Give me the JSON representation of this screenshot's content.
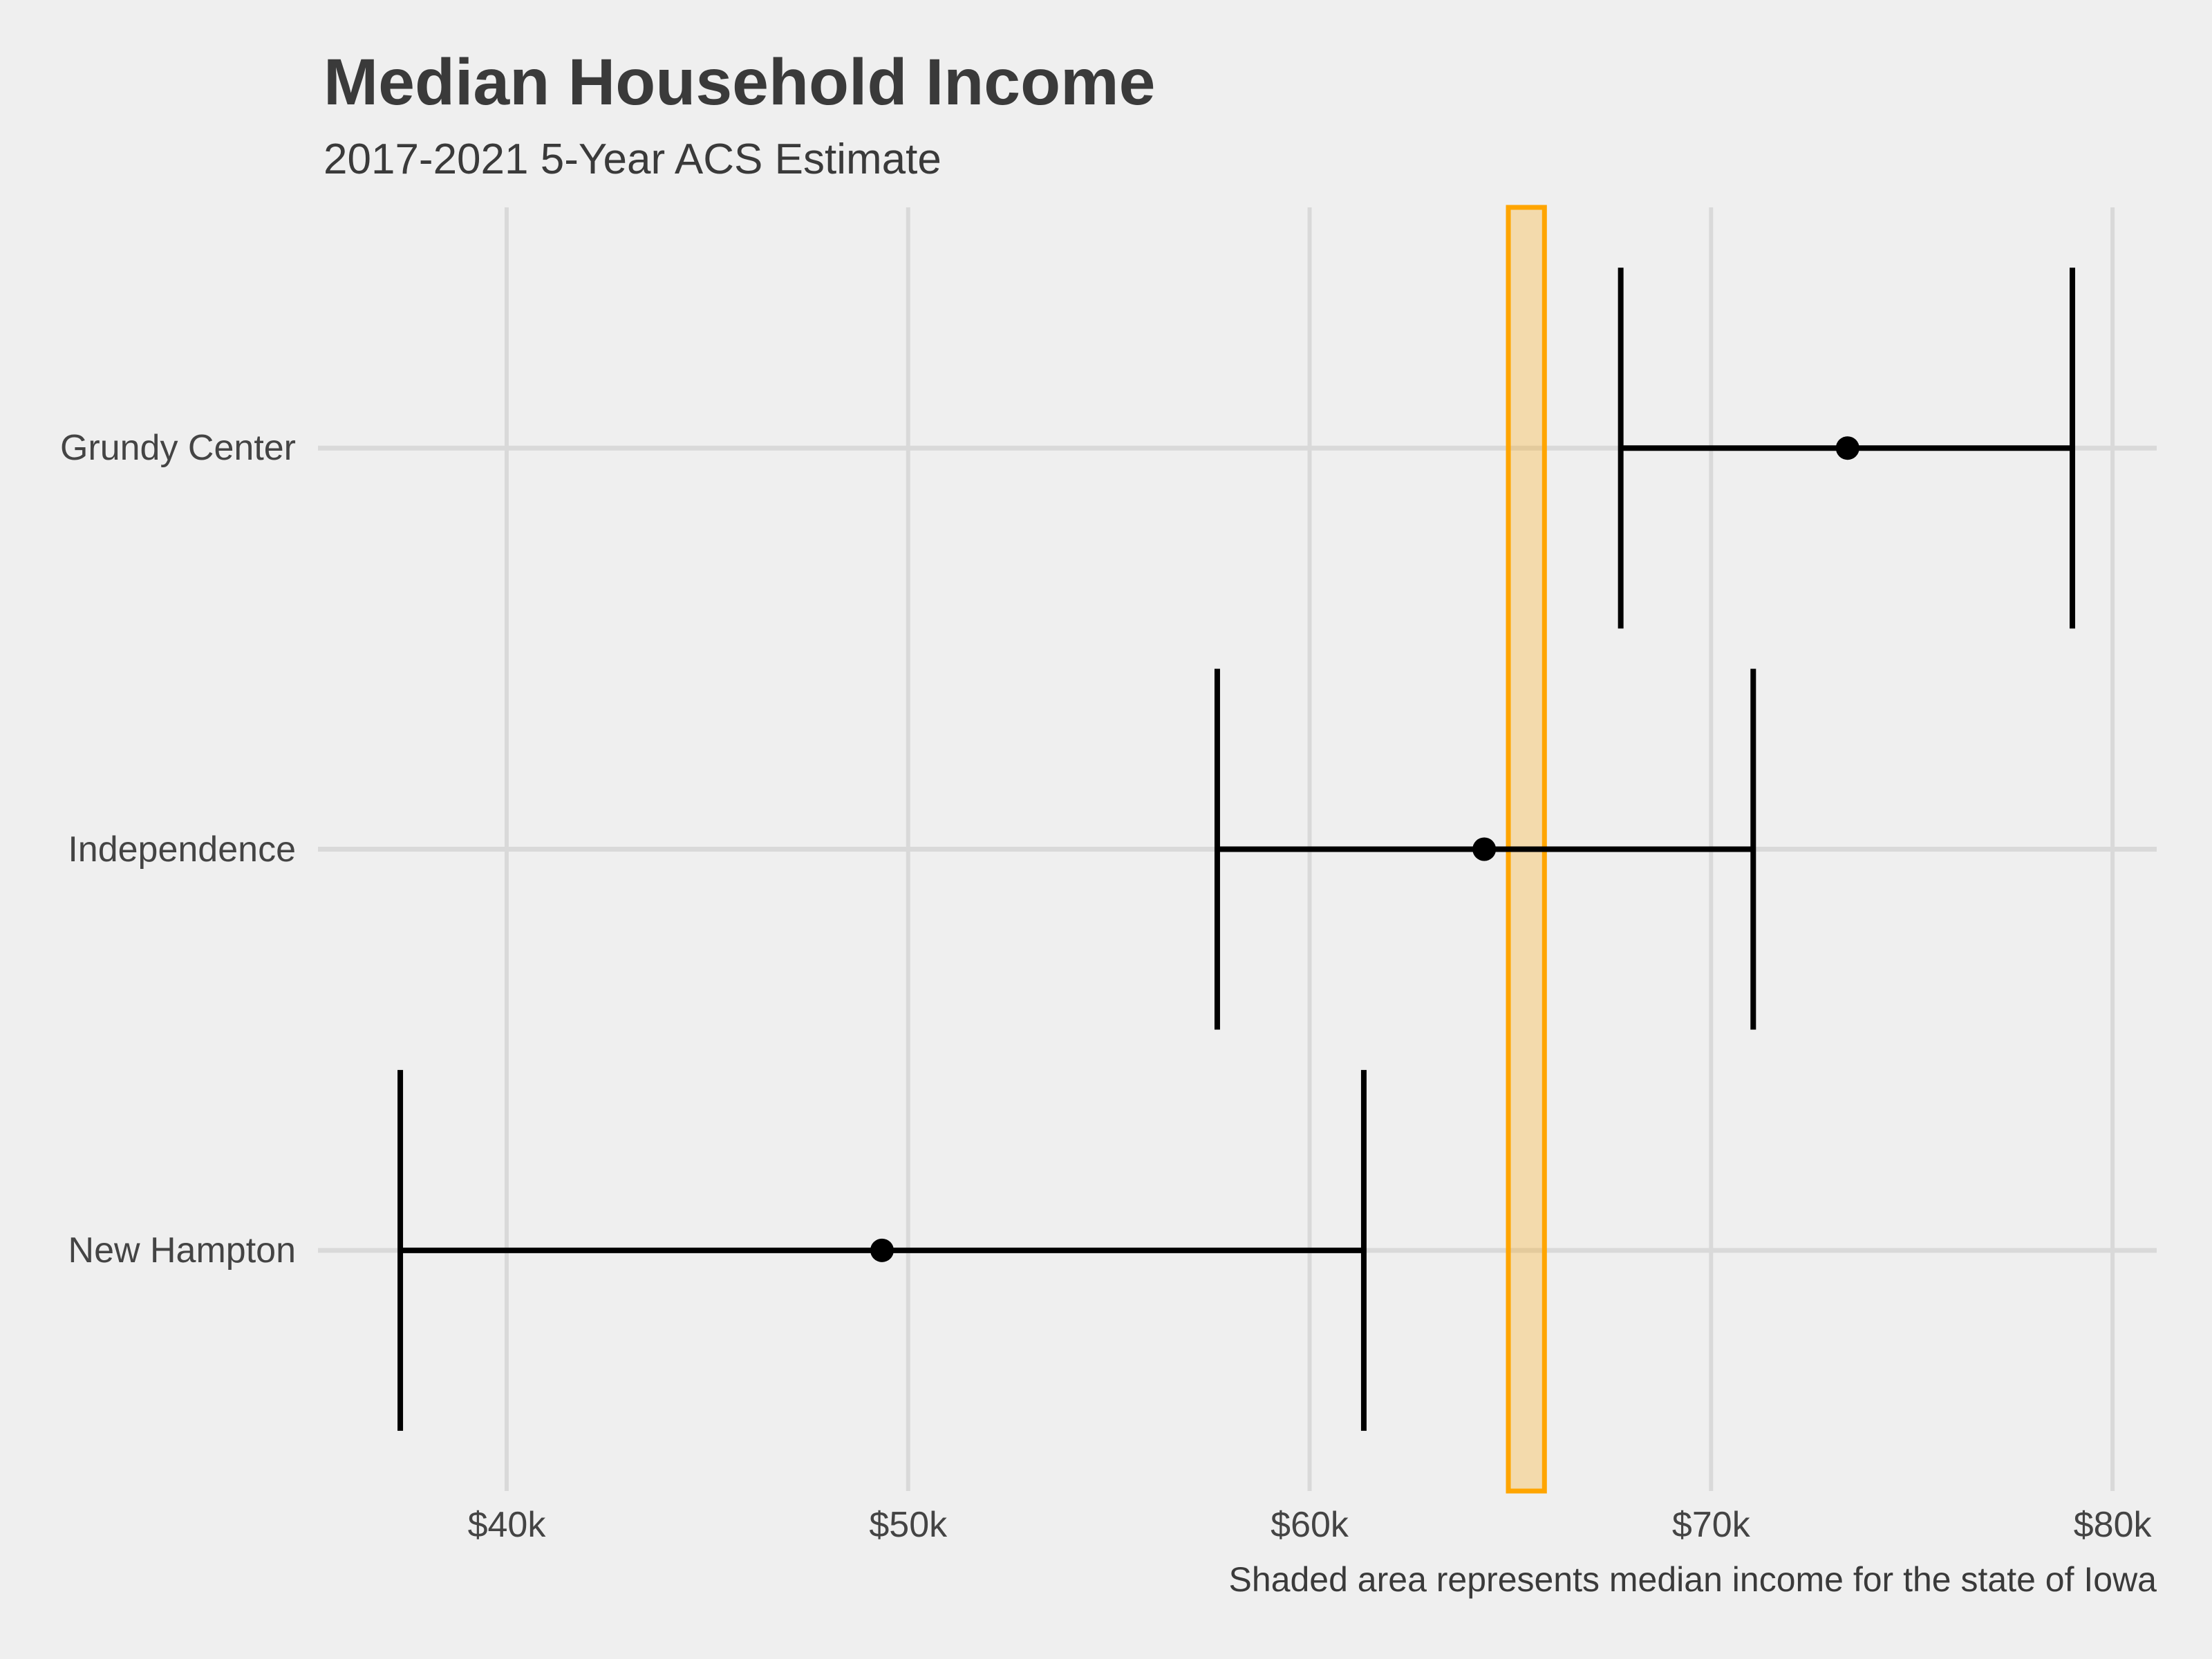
{
  "header": {
    "title": "Median Household Income",
    "subtitle": "2017-2021 5-Year ACS Estimate"
  },
  "caption": "Shaded area represents median income for the state of Iowa",
  "chart_data": {
    "type": "scatter",
    "subtype": "dot-with-horizontal-error-bars",
    "title": "Median Household Income",
    "subtitle": "2017-2021 5-Year ACS Estimate",
    "caption": "Shaded area represents median income for the state of Iowa",
    "xlabel": "",
    "ylabel": "",
    "categories": [
      "Grundy Center",
      "Independence",
      "New Hampton"
    ],
    "series": [
      {
        "name": "Grundy Center",
        "estimate": 73400,
        "ci_low": 67750,
        "ci_high": 79000
      },
      {
        "name": "Independence",
        "estimate": 64350,
        "ci_low": 57700,
        "ci_high": 71050
      },
      {
        "name": "New Hampton",
        "estimate": 49350,
        "ci_low": 37350,
        "ci_high": 61350
      }
    ],
    "reference_band": {
      "name": "Iowa state median income",
      "low": 64950,
      "high": 65850
    },
    "x_ticks": [
      {
        "value": 40000,
        "label": "$40k"
      },
      {
        "value": 50000,
        "label": "$50k"
      },
      {
        "value": 60000,
        "label": "$60k"
      },
      {
        "value": 70000,
        "label": "$70k"
      },
      {
        "value": 80000,
        "label": "$80k"
      }
    ],
    "xlim": [
      35300,
      81100
    ],
    "grid": true,
    "legend": "none",
    "colors": {
      "background": "#EFEFEF",
      "gridline": "#D9D9D9",
      "error_bar": "#000000",
      "point": "#000000",
      "band_fill": "rgba(255,165,0,0.28)",
      "band_border": "#FFA500",
      "title_text": "#3A3A3A",
      "axis_text": "#444444"
    }
  }
}
